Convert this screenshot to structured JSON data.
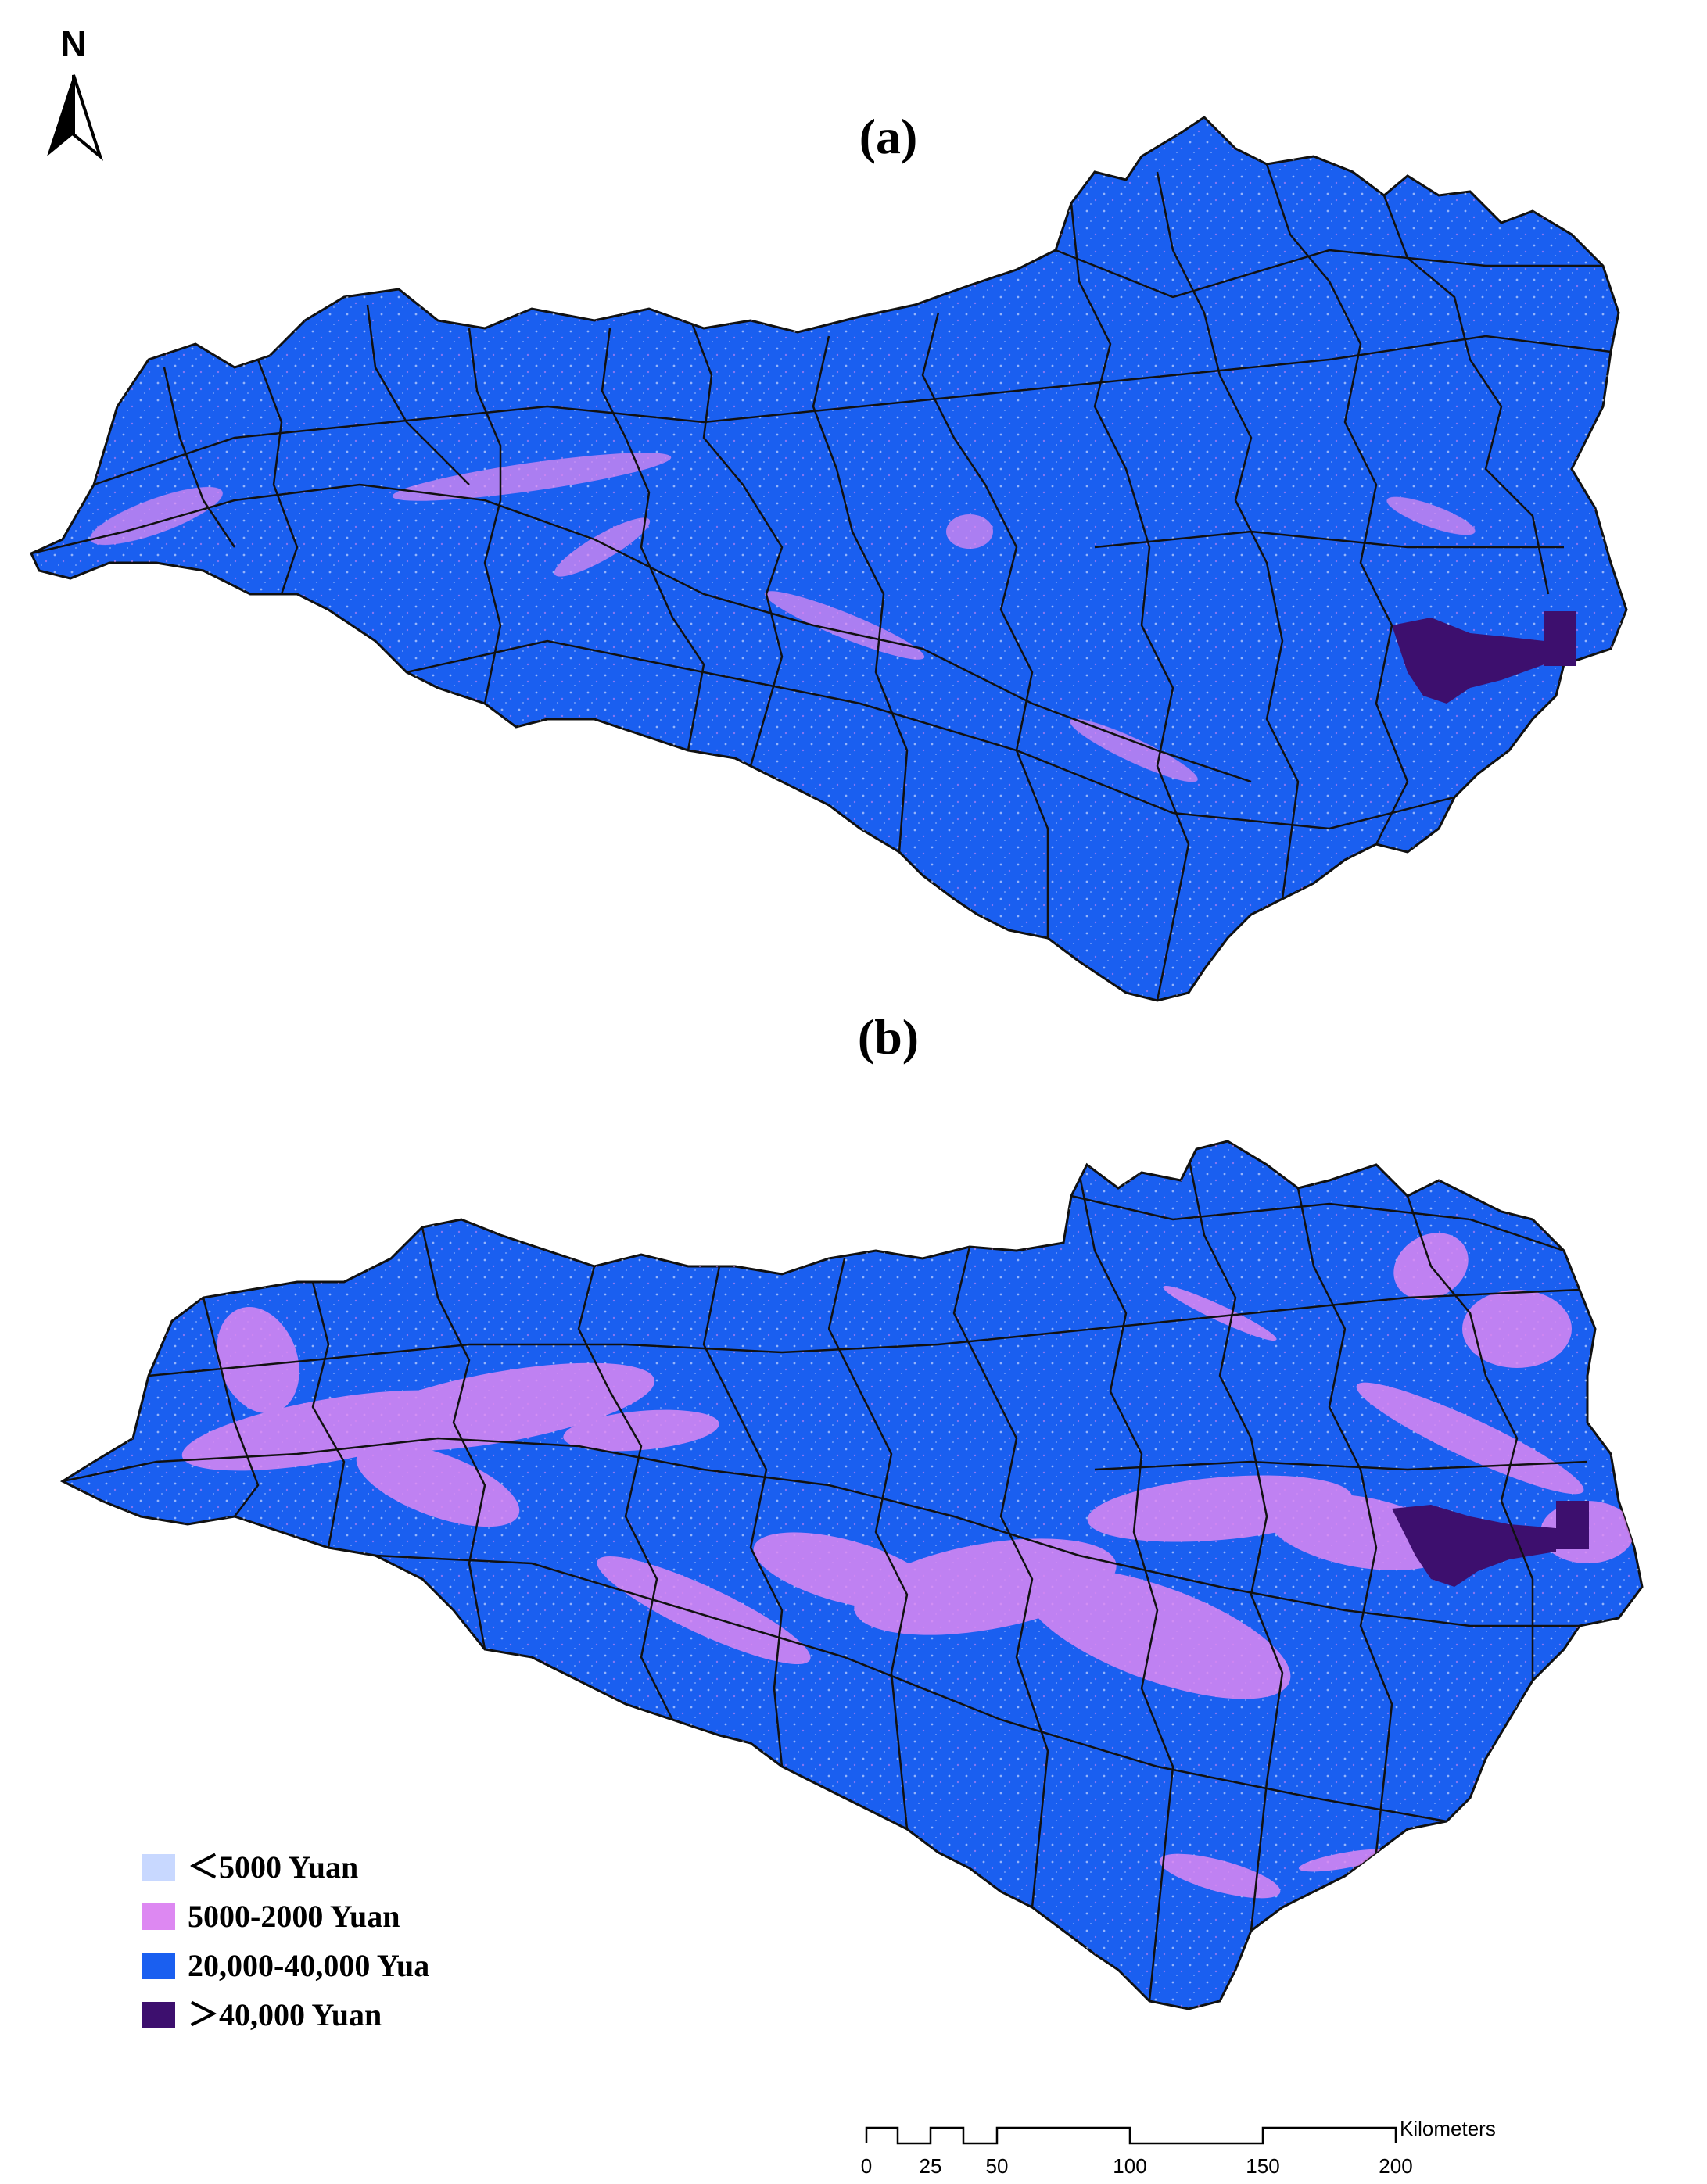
{
  "north_arrow": {
    "letter": "N",
    "icon": "north-arrow-icon"
  },
  "panels": [
    {
      "label": "(a)",
      "dominant_class": "20,000-40,000 Yuan"
    },
    {
      "label": "(b)",
      "dominant_class": "20,000-40,000 Yuan"
    }
  ],
  "legend": {
    "items": [
      {
        "label": "＜5000 Yuan",
        "color": "#c8d8ff"
      },
      {
        "label": "5000-2000 Yuan",
        "color": "#dd88f2"
      },
      {
        "label": "20,000-40,000 Yua",
        "color": "#1a5ff0"
      },
      {
        "label": "＞40,000 Yuan",
        "color": "#3d0f6e"
      }
    ]
  },
  "scale_bar": {
    "unit": "Kilometers",
    "ticks": [
      "0",
      "25",
      "50",
      "100",
      "150",
      "200"
    ]
  },
  "colors": {
    "boundary": "#111111",
    "background": "#ffffff"
  }
}
